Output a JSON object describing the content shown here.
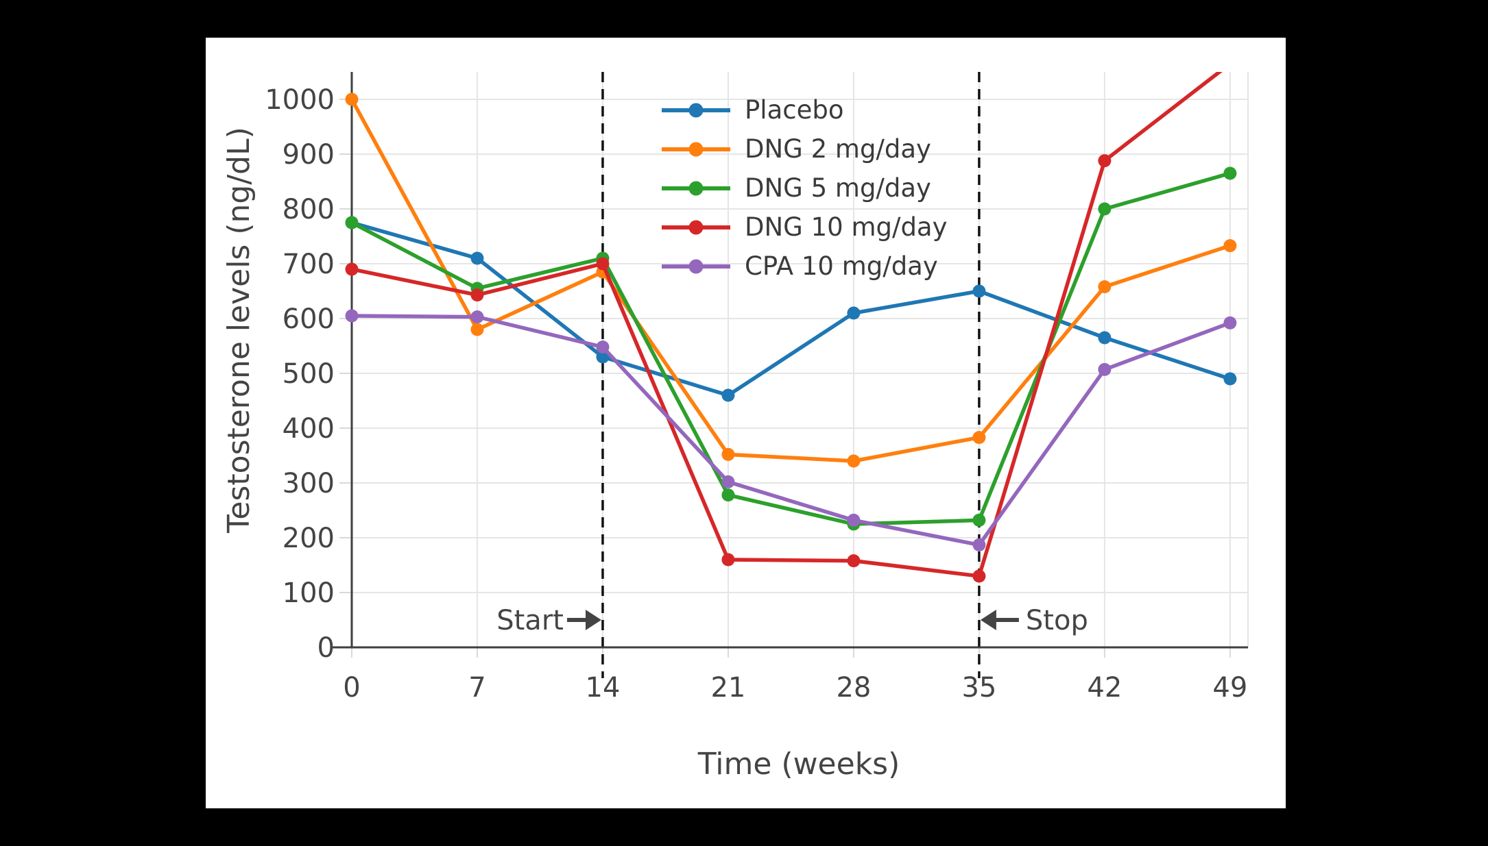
{
  "page": {
    "background": "#000000",
    "card_background": "#ffffff"
  },
  "style": {
    "grid_color": "#e5e5e5",
    "axis_color": "#3f3f3f",
    "tick_color": "#d9d9d9",
    "text_color": "#444444",
    "dashed_line_color": "#111111",
    "annotation_color": "#444444",
    "legend_text_color": "#3a3a3a"
  },
  "chart_data": {
    "type": "line",
    "title": "",
    "xlabel": "Time (weeks)",
    "ylabel": "Testosterone levels (ng/dL)",
    "x": [
      0,
      7,
      14,
      21,
      28,
      35,
      42,
      49
    ],
    "x_tick_labels": [
      "0",
      "7",
      "14",
      "21",
      "28",
      "35",
      "42",
      "49"
    ],
    "y_tick_values": [
      0,
      100,
      200,
      300,
      400,
      500,
      600,
      700,
      800,
      900,
      1000
    ],
    "xlim": [
      0,
      50
    ],
    "ylim": [
      0,
      1050
    ],
    "grid": true,
    "legend_position": "inside-top-center",
    "series": [
      {
        "name": "Placebo",
        "color": "#1f77b4",
        "values": [
          775,
          710,
          530,
          460,
          610,
          650,
          565,
          490
        ]
      },
      {
        "name": "DNG 2 mg/day",
        "color": "#ff7f0e",
        "values": [
          1000,
          580,
          685,
          352,
          340,
          383,
          658,
          733
        ]
      },
      {
        "name": "DNG 5 mg/day",
        "color": "#2ca02c",
        "values": [
          775,
          655,
          710,
          278,
          225,
          232,
          800,
          865
        ]
      },
      {
        "name": "DNG 10 mg/day",
        "color": "#d62728",
        "values": [
          690,
          643,
          700,
          160,
          158,
          130,
          888,
          1065
        ]
      },
      {
        "name": "CPA 10 mg/day",
        "color": "#9467bd",
        "values": [
          605,
          603,
          548,
          302,
          232,
          187,
          507,
          592
        ]
      }
    ],
    "rule_lines_weeks": [
      14,
      35
    ],
    "annotations": [
      {
        "text": "Start",
        "week": 14,
        "direction": "right"
      },
      {
        "text": "Stop",
        "week": 35,
        "direction": "left"
      }
    ]
  }
}
